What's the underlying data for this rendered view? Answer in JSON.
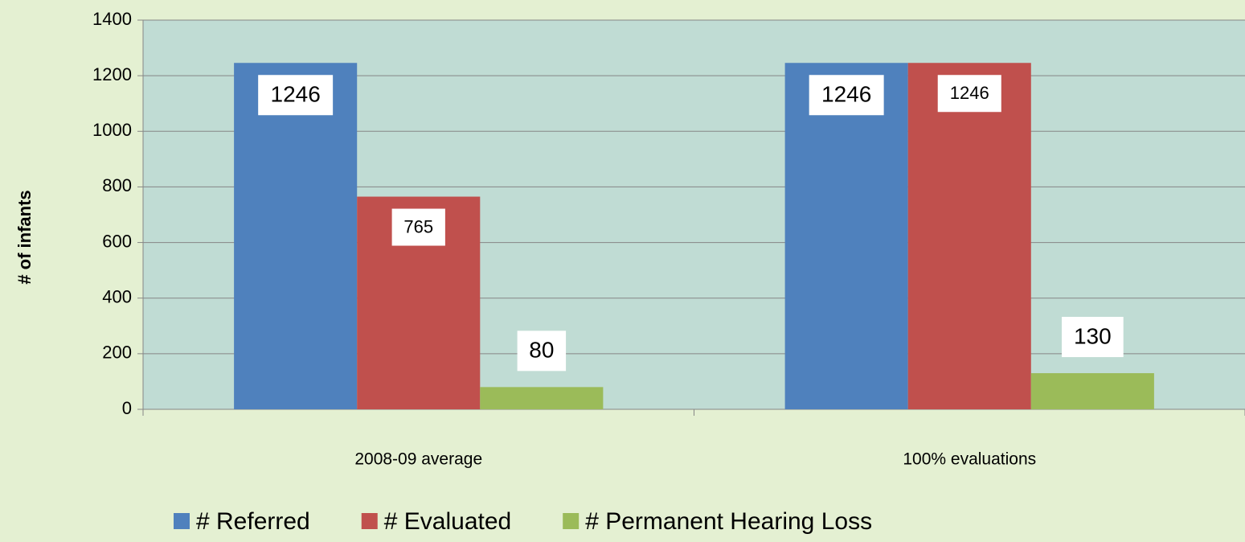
{
  "chart_data": {
    "type": "bar",
    "categories": [
      "2008-09 average",
      "100% evaluations"
    ],
    "series": [
      {
        "name": "# Referred",
        "color": "#4f81bd",
        "values": [
          1246,
          1246
        ]
      },
      {
        "name": "# Evaluated",
        "color": "#c0504d",
        "values": [
          765,
          1246
        ]
      },
      {
        "name": "# Permanent Hearing Loss",
        "color": "#9bbb59",
        "values": [
          80,
          130
        ]
      }
    ],
    "y_label": "# of infants",
    "ylim": [
      0,
      1400
    ],
    "yticks": [
      0,
      200,
      400,
      600,
      800,
      1000,
      1200,
      1400
    ],
    "grid": true,
    "legend": "bottom"
  }
}
